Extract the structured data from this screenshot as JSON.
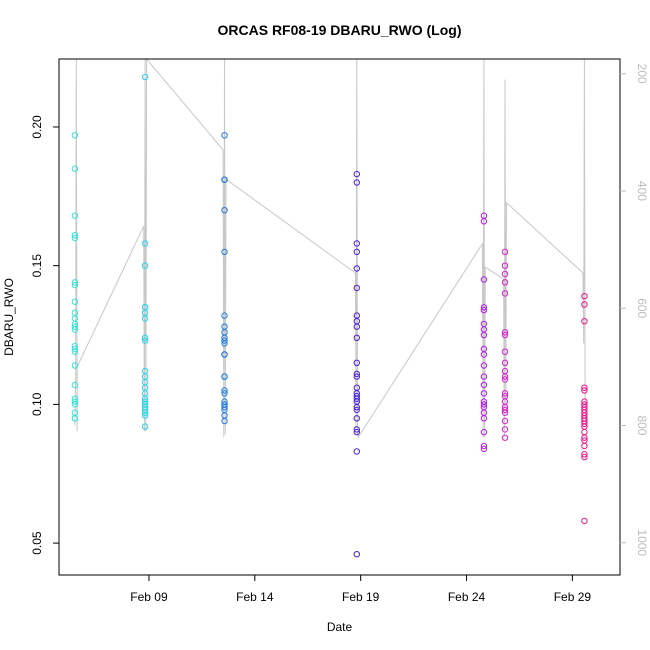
{
  "chart_data": {
    "type": "scatter",
    "title": "ORCAS RF08-19 DBARU_RWO (Log)",
    "xlabel": "Date",
    "ylabel": "DBARU_RWO",
    "x_is_date": true,
    "xlim": [
      "2016-02-04T18:00",
      "2016-03-02T06:00"
    ],
    "ylim": [
      0.0385,
      0.2245
    ],
    "y2lim": [
      1055,
      175
    ],
    "x_ticks": [
      {
        "value": "2016-02-09",
        "label": "Feb 09"
      },
      {
        "value": "2016-02-14",
        "label": "Feb 14"
      },
      {
        "value": "2016-02-19",
        "label": "Feb 19"
      },
      {
        "value": "2016-02-24",
        "label": "Feb 24"
      },
      {
        "value": "2016-02-29",
        "label": "Feb 29"
      }
    ],
    "y_ticks": [
      {
        "value": 0.05,
        "label": "0.05"
      },
      {
        "value": 0.1,
        "label": "0.10"
      },
      {
        "value": 0.15,
        "label": "0.15"
      },
      {
        "value": 0.2,
        "label": "0.20"
      }
    ],
    "y2_ticks": [
      {
        "value": 200,
        "label": "200"
      },
      {
        "value": 400,
        "label": "400"
      },
      {
        "value": 600,
        "label": "600"
      },
      {
        "value": 800,
        "label": "800"
      },
      {
        "value": 1000,
        "label": "1000"
      }
    ],
    "pressure_trace": {
      "color": "#c8c8c8",
      "points": [
        [
          "2016-02-05T12:00",
          800
        ],
        [
          "2016-02-05T12:50",
          720
        ],
        [
          "2016-02-05T13:40",
          175
        ],
        [
          "2016-02-05T14:30",
          810
        ],
        [
          "2016-02-05T14:40",
          700
        ],
        [
          "2016-02-08T18:00",
          460
        ],
        [
          "2016-02-08T18:50",
          810
        ],
        [
          "2016-02-08T19:40",
          175
        ],
        [
          "2016-02-08T20:30",
          810
        ],
        [
          "2016-02-08T21:20",
          175
        ],
        [
          "2016-02-12T12:00",
          330
        ],
        [
          "2016-02-12T12:50",
          820
        ],
        [
          "2016-02-12T13:40",
          175
        ],
        [
          "2016-02-12T14:30",
          815
        ],
        [
          "2016-02-12T15:20",
          380
        ],
        [
          "2016-02-18T18:00",
          540
        ],
        [
          "2016-02-18T18:50",
          810
        ],
        [
          "2016-02-18T19:40",
          175
        ],
        [
          "2016-02-18T20:30",
          810
        ],
        [
          "2016-02-18T21:20",
          820
        ],
        [
          "2016-02-24T18:00",
          490
        ],
        [
          "2016-02-24T18:50",
          820
        ],
        [
          "2016-02-24T19:40",
          175
        ],
        [
          "2016-02-24T20:30",
          820
        ],
        [
          "2016-02-24T21:20",
          530
        ],
        [
          "2016-02-25T18:00",
          550
        ],
        [
          "2016-02-25T18:50",
          820
        ],
        [
          "2016-02-25T19:40",
          210
        ],
        [
          "2016-02-25T20:30",
          780
        ],
        [
          "2016-02-25T21:20",
          420
        ],
        [
          "2016-02-29T12:00",
          540
        ],
        [
          "2016-02-29T12:50",
          660
        ],
        [
          "2016-02-29T13:40",
          175
        ],
        [
          "2016-02-29T14:30",
          800
        ]
      ]
    },
    "series": [
      {
        "color": "#33e3d6",
        "points": [
          [
            "2016-02-05T12:00",
            0.197
          ],
          [
            "2016-02-05T12:00",
            0.185
          ],
          [
            "2016-02-05T12:00",
            0.168
          ],
          [
            "2016-02-05T12:00",
            0.161
          ],
          [
            "2016-02-05T12:00",
            0.16
          ],
          [
            "2016-02-05T12:00",
            0.144
          ],
          [
            "2016-02-05T12:00",
            0.143
          ],
          [
            "2016-02-05T12:00",
            0.137
          ],
          [
            "2016-02-05T12:00",
            0.133
          ],
          [
            "2016-02-05T12:00",
            0.131
          ],
          [
            "2016-02-05T12:00",
            0.129
          ],
          [
            "2016-02-05T12:00",
            0.128
          ],
          [
            "2016-02-05T12:00",
            0.127
          ],
          [
            "2016-02-05T12:00",
            0.121
          ],
          [
            "2016-02-05T12:00",
            0.12
          ],
          [
            "2016-02-05T12:00",
            0.119
          ],
          [
            "2016-02-05T12:00",
            0.114
          ],
          [
            "2016-02-05T12:00",
            0.107
          ],
          [
            "2016-02-05T12:00",
            0.102
          ],
          [
            "2016-02-05T12:00",
            0.101
          ],
          [
            "2016-02-05T12:00",
            0.1
          ],
          [
            "2016-02-05T12:00",
            0.097
          ],
          [
            "2016-02-05T12:00",
            0.095
          ],
          [
            "2016-02-05T12:00",
            0.095
          ]
        ]
      },
      {
        "color": "#22d8f0",
        "points": [
          [
            "2016-02-08T19:40",
            0.218
          ],
          [
            "2016-02-08T19:40",
            0.158
          ],
          [
            "2016-02-08T19:40",
            0.15
          ],
          [
            "2016-02-08T19:40",
            0.135
          ],
          [
            "2016-02-08T19:40",
            0.135
          ],
          [
            "2016-02-08T19:40",
            0.133
          ],
          [
            "2016-02-08T19:40",
            0.131
          ],
          [
            "2016-02-08T19:40",
            0.124
          ],
          [
            "2016-02-08T19:40",
            0.123
          ],
          [
            "2016-02-08T19:40",
            0.112
          ],
          [
            "2016-02-08T19:40",
            0.11
          ],
          [
            "2016-02-08T19:40",
            0.108
          ],
          [
            "2016-02-08T19:40",
            0.106
          ],
          [
            "2016-02-08T19:40",
            0.104
          ],
          [
            "2016-02-08T19:40",
            0.102
          ],
          [
            "2016-02-08T19:40",
            0.101
          ],
          [
            "2016-02-08T19:40",
            0.1
          ],
          [
            "2016-02-08T19:40",
            0.099
          ],
          [
            "2016-02-08T19:40",
            0.098
          ],
          [
            "2016-02-08T19:40",
            0.097
          ],
          [
            "2016-02-08T19:40",
            0.096
          ],
          [
            "2016-02-08T19:40",
            0.092
          ]
        ]
      },
      {
        "color": "#1e7be6",
        "points": [
          [
            "2016-02-12T13:40",
            0.197
          ],
          [
            "2016-02-12T13:40",
            0.181
          ],
          [
            "2016-02-12T13:40",
            0.181
          ],
          [
            "2016-02-12T13:40",
            0.17
          ],
          [
            "2016-02-12T13:40",
            0.155
          ],
          [
            "2016-02-12T13:40",
            0.132
          ],
          [
            "2016-02-12T13:40",
            0.128
          ],
          [
            "2016-02-12T13:40",
            0.126
          ],
          [
            "2016-02-12T13:40",
            0.124
          ],
          [
            "2016-02-12T13:40",
            0.123
          ],
          [
            "2016-02-12T13:40",
            0.122
          ],
          [
            "2016-02-12T13:40",
            0.118
          ],
          [
            "2016-02-12T13:40",
            0.118
          ],
          [
            "2016-02-12T13:40",
            0.11
          ],
          [
            "2016-02-12T13:40",
            0.11
          ],
          [
            "2016-02-12T13:40",
            0.105
          ],
          [
            "2016-02-12T13:40",
            0.104
          ],
          [
            "2016-02-12T13:40",
            0.101
          ],
          [
            "2016-02-12T13:40",
            0.1
          ],
          [
            "2016-02-12T13:40",
            0.1
          ],
          [
            "2016-02-12T13:40",
            0.099
          ],
          [
            "2016-02-12T13:40",
            0.098
          ],
          [
            "2016-02-12T13:40",
            0.096
          ],
          [
            "2016-02-12T13:40",
            0.094
          ]
        ]
      },
      {
        "color": "#4a1fdb",
        "points": [
          [
            "2016-02-18T19:40",
            0.183
          ],
          [
            "2016-02-18T19:40",
            0.18
          ],
          [
            "2016-02-18T19:40",
            0.158
          ],
          [
            "2016-02-18T19:40",
            0.155
          ],
          [
            "2016-02-18T19:40",
            0.149
          ],
          [
            "2016-02-18T19:40",
            0.142
          ],
          [
            "2016-02-18T19:40",
            0.132
          ],
          [
            "2016-02-18T19:40",
            0.13
          ],
          [
            "2016-02-18T19:40",
            0.128
          ],
          [
            "2016-02-18T19:40",
            0.124
          ],
          [
            "2016-02-18T19:40",
            0.115
          ],
          [
            "2016-02-18T19:40",
            0.111
          ],
          [
            "2016-02-18T19:40",
            0.11
          ],
          [
            "2016-02-18T19:40",
            0.106
          ],
          [
            "2016-02-18T19:40",
            0.104
          ],
          [
            "2016-02-18T19:40",
            0.103
          ],
          [
            "2016-02-18T19:40",
            0.102
          ],
          [
            "2016-02-18T19:40",
            0.101
          ],
          [
            "2016-02-18T19:40",
            0.099
          ],
          [
            "2016-02-18T19:40",
            0.098
          ],
          [
            "2016-02-18T19:40",
            0.095
          ],
          [
            "2016-02-18T19:40",
            0.091
          ],
          [
            "2016-02-18T19:40",
            0.09
          ],
          [
            "2016-02-18T19:40",
            0.083
          ],
          [
            "2016-02-18T19:40",
            0.046
          ]
        ]
      },
      {
        "color": "#b51ee6",
        "points": [
          [
            "2016-02-24T19:40",
            0.168
          ],
          [
            "2016-02-24T19:40",
            0.166
          ],
          [
            "2016-02-24T19:40",
            0.145
          ],
          [
            "2016-02-24T19:40",
            0.135
          ],
          [
            "2016-02-24T19:40",
            0.134
          ],
          [
            "2016-02-24T19:40",
            0.129
          ],
          [
            "2016-02-24T19:40",
            0.127
          ],
          [
            "2016-02-24T19:40",
            0.125
          ],
          [
            "2016-02-24T19:40",
            0.12
          ],
          [
            "2016-02-24T19:40",
            0.118
          ],
          [
            "2016-02-24T19:40",
            0.114
          ],
          [
            "2016-02-24T19:40",
            0.11
          ],
          [
            "2016-02-24T19:40",
            0.107
          ],
          [
            "2016-02-24T19:40",
            0.104
          ],
          [
            "2016-02-24T19:40",
            0.101
          ],
          [
            "2016-02-24T19:40",
            0.1
          ],
          [
            "2016-02-24T19:40",
            0.099
          ],
          [
            "2016-02-24T19:40",
            0.097
          ],
          [
            "2016-02-24T19:40",
            0.095
          ],
          [
            "2016-02-24T19:40",
            0.09
          ],
          [
            "2016-02-24T19:40",
            0.085
          ],
          [
            "2016-02-24T19:40",
            0.084
          ]
        ]
      },
      {
        "color": "#de1ed2",
        "points": [
          [
            "2016-02-25T19:40",
            0.155
          ],
          [
            "2016-02-25T19:40",
            0.15
          ],
          [
            "2016-02-25T19:40",
            0.147
          ],
          [
            "2016-02-25T19:40",
            0.144
          ],
          [
            "2016-02-25T19:40",
            0.14
          ],
          [
            "2016-02-25T19:40",
            0.126
          ],
          [
            "2016-02-25T19:40",
            0.125
          ],
          [
            "2016-02-25T19:40",
            0.119
          ],
          [
            "2016-02-25T19:40",
            0.115
          ],
          [
            "2016-02-25T19:40",
            0.112
          ],
          [
            "2016-02-25T19:40",
            0.11
          ],
          [
            "2016-02-25T19:40",
            0.109
          ],
          [
            "2016-02-25T19:40",
            0.104
          ],
          [
            "2016-02-25T19:40",
            0.103
          ],
          [
            "2016-02-25T19:40",
            0.101
          ],
          [
            "2016-02-25T19:40",
            0.099
          ],
          [
            "2016-02-25T19:40",
            0.098
          ],
          [
            "2016-02-25T19:40",
            0.097
          ],
          [
            "2016-02-25T19:40",
            0.094
          ],
          [
            "2016-02-25T19:40",
            0.091
          ],
          [
            "2016-02-25T19:40",
            0.088
          ]
        ]
      },
      {
        "color": "#f0148c",
        "points": [
          [
            "2016-02-29T13:40",
            0.139
          ],
          [
            "2016-02-29T13:40",
            0.136
          ],
          [
            "2016-02-29T13:40",
            0.13
          ],
          [
            "2016-02-29T13:40",
            0.106
          ],
          [
            "2016-02-29T13:40",
            0.105
          ],
          [
            "2016-02-29T13:40",
            0.101
          ],
          [
            "2016-02-29T13:40",
            0.1
          ],
          [
            "2016-02-29T13:40",
            0.099
          ],
          [
            "2016-02-29T13:40",
            0.098
          ],
          [
            "2016-02-29T13:40",
            0.097
          ],
          [
            "2016-02-29T13:40",
            0.096
          ],
          [
            "2016-02-29T13:40",
            0.095
          ],
          [
            "2016-02-29T13:40",
            0.094
          ],
          [
            "2016-02-29T13:40",
            0.093
          ],
          [
            "2016-02-29T13:40",
            0.092
          ],
          [
            "2016-02-29T13:40",
            0.09
          ],
          [
            "2016-02-29T13:40",
            0.088
          ],
          [
            "2016-02-29T13:40",
            0.087
          ],
          [
            "2016-02-29T13:40",
            0.085
          ],
          [
            "2016-02-29T13:40",
            0.082
          ],
          [
            "2016-02-29T13:40",
            0.081
          ],
          [
            "2016-02-29T13:40",
            0.058
          ]
        ]
      }
    ]
  }
}
